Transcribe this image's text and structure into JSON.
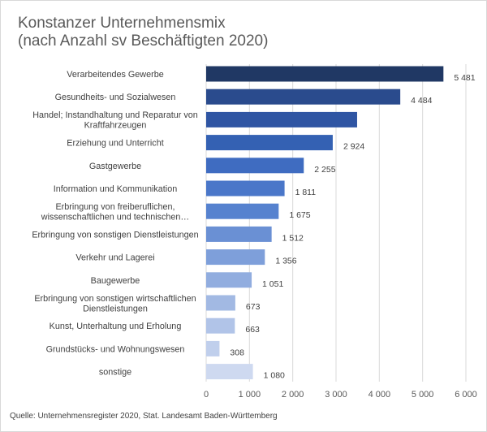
{
  "chart_data": {
    "type": "bar",
    "orientation": "horizontal",
    "title": "Konstanzer Unternehmensmix\n(nach Anzahl sv Beschäftigten 2020)",
    "source": "Quelle:  Unternehmensregister  2020, Stat. Landesamt  Baden-Württemberg",
    "xlim": [
      0,
      6000
    ],
    "x_ticks": [
      0,
      1000,
      2000,
      3000,
      4000,
      5000,
      6000
    ],
    "x_tick_labels": [
      "0",
      "1 000",
      "2 000",
      "3 000",
      "4 000",
      "5 000",
      "6 000"
    ],
    "grid": "vertical",
    "categories": [
      [
        "Verarbeitendes Gewerbe"
      ],
      [
        "Gesundheits- und Sozialwesen"
      ],
      [
        "Handel; Instandhaltung und Reparatur von",
        "Kraftfahrzeugen"
      ],
      [
        "Erziehung und Unterricht"
      ],
      [
        "Gastgewerbe"
      ],
      [
        "Information und Kommunikation"
      ],
      [
        "Erbringung von freiberuflichen,",
        "wissenschaftlichen und technischen…"
      ],
      [
        "Erbringung von sonstigen Dienstleistungen"
      ],
      [
        "Verkehr und Lagerei"
      ],
      [
        "Baugewerbe"
      ],
      [
        "Erbringung von sonstigen wirtschaftlichen",
        "Dienstleistungen"
      ],
      [
        "Kunst, Unterhaltung und Erholung"
      ],
      [
        "Grundstücks- und Wohnungswesen"
      ],
      [
        "sonstige"
      ]
    ],
    "values": [
      5481,
      4484,
      3487,
      2924,
      2255,
      1811,
      1675,
      1512,
      1356,
      1051,
      673,
      663,
      308,
      1080
    ],
    "value_labels": [
      "5 481",
      "4 484",
      "",
      "2 924",
      "2 255",
      "1 811",
      "1 675",
      "1 512",
      "1 356",
      "1 051",
      "673",
      "663",
      "308",
      "1 080"
    ],
    "colors": [
      "#203864",
      "#2a4b8d",
      "#2f55a3",
      "#3461b3",
      "#3f6cc1",
      "#4a77c9",
      "#5682cf",
      "#6a90d4",
      "#7e9fda",
      "#91addf",
      "#a2b9e3",
      "#b1c4e8",
      "#c0cfec",
      "#ced9f0"
    ]
  }
}
